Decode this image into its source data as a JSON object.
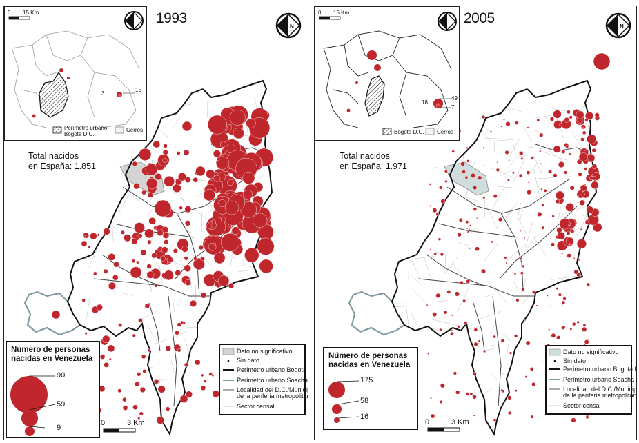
{
  "maps": [
    {
      "year": "1993",
      "total_line1": "Total nacidos",
      "total_line2": "en España: 1.851",
      "legend_title_1": "Número de personas",
      "legend_title_2": "nacidas en Venezuela",
      "legend_values": [
        "90",
        "59",
        "9"
      ],
      "scale_zero": "0",
      "scale_label": "3 Km",
      "inset_scale_zero": "0",
      "inset_scale_label": "15 Km",
      "inset_values": [
        "3",
        "15"
      ],
      "inset_legend_perimeter_1": "Perímetro urbano",
      "inset_legend_perimeter_2": "Bogotá D.C.",
      "inset_legend_hills": "Cerros",
      "compass_letter": "N"
    },
    {
      "year": "2005",
      "total_line1": "Total nacidos",
      "total_line2": "en España: 1.971",
      "legend_title_1": "Número de personas",
      "legend_title_2": "nacidas en Venezuela",
      "legend_values": [
        "175",
        "58",
        "16"
      ],
      "scale_zero": "0",
      "scale_label": "3 Km",
      "inset_scale_zero": "0",
      "inset_scale_label": "15 Km",
      "inset_values": [
        "18",
        "49",
        "7"
      ],
      "inset_legend_perimeter_1": "Bogotá D.C.",
      "inset_legend_hills": "Cerros",
      "compass_letter": "N"
    }
  ],
  "symbol_legend": {
    "not_significant": "Dato no significativo",
    "no_data": "Sin dato",
    "perimeter_bogota": "Perímetro urbano Bogotá D.C.",
    "perimeter_soacha": "Perímetro urbano Soacha",
    "locality_1": "Localidad del D.C./Municipio",
    "locality_2": "de la periferia metropolitana",
    "census_sector": "Sector censal"
  },
  "colors": {
    "bubble": "#c0272d",
    "bubble_edge": "#ffffff",
    "perimeter": "#111111",
    "soacha": "#7f9aa0",
    "sector": "#bdbdbd",
    "not_significant": "#d4d4d4",
    "not_significant_2005": "#cfdedd"
  }
}
